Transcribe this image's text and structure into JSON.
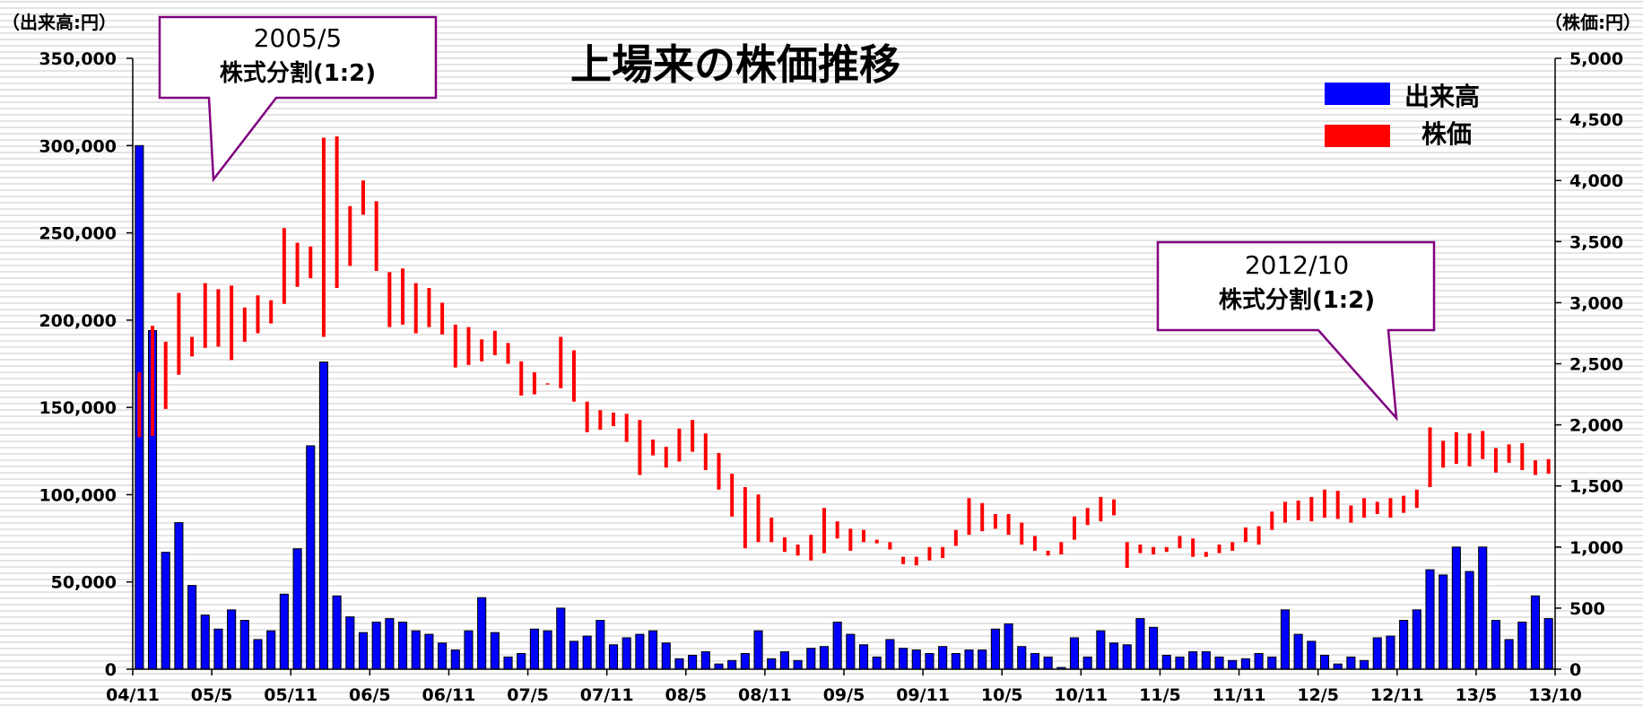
{
  "chart_data": {
    "type": "bar+range",
    "title": "上場来の株価推移",
    "y_left_unit": "（出来高:円）",
    "y_right_unit": "（株価:円）",
    "y_left_lim": [
      0,
      350000
    ],
    "y_right_lim": [
      0,
      5000
    ],
    "y_left_ticks": [
      "0",
      "50,000",
      "100,000",
      "150,000",
      "200,000",
      "250,000",
      "300,000",
      "350,000"
    ],
    "y_right_ticks": [
      "0",
      "500",
      "1,000",
      "1,500",
      "2,000",
      "2,500",
      "3,000",
      "3,500",
      "4,000",
      "4,500",
      "5,000"
    ],
    "x_ticks": [
      "04/11",
      "05/5",
      "05/11",
      "06/5",
      "06/11",
      "07/5",
      "07/11",
      "08/5",
      "08/11",
      "09/5",
      "09/11",
      "10/5",
      "10/11",
      "11/5",
      "11/11",
      "12/5",
      "12/11",
      "13/5",
      "13/10"
    ],
    "grid": true,
    "legend": [
      {
        "name": "出来高",
        "color": "#0000ff"
      },
      {
        "name": "株価",
        "color": "#ff0000"
      }
    ],
    "volume_color": "#0000ff",
    "price_color": "#ff0000",
    "volume": [
      300000,
      194000,
      67000,
      84000,
      48000,
      31000,
      23000,
      34000,
      28000,
      17000,
      22000,
      43000,
      69000,
      128000,
      176000,
      42000,
      30000,
      21000,
      27000,
      29000,
      27000,
      22000,
      20000,
      15000,
      11000,
      22000,
      41000,
      21000,
      7000,
      9000,
      23000,
      22000,
      35000,
      16000,
      19000,
      28000,
      14000,
      18000,
      20000,
      22000,
      15000,
      6000,
      8000,
      10000,
      3000,
      5000,
      9000,
      22000,
      6000,
      10000,
      5000,
      12000,
      13000,
      27000,
      20000,
      14000,
      7000,
      17000,
      12000,
      11000,
      9000,
      13000,
      9000,
      11000,
      11000,
      23000,
      26000,
      13000,
      9000,
      7000,
      1000,
      18000,
      7000,
      22000,
      15000,
      14000,
      29000,
      24000,
      8000,
      7000,
      10000,
      10000,
      7000,
      5000,
      6000,
      9000,
      7000,
      34000,
      20000,
      16000,
      8000,
      3000,
      7000,
      5000,
      18000,
      19000,
      28000,
      34000,
      57000,
      54000,
      70000,
      56000,
      70000,
      28000,
      17000,
      27000,
      42000,
      29000
    ],
    "price_high": [
      2430,
      2810,
      2680,
      3080,
      2720,
      3160,
      3110,
      3140,
      2960,
      3060,
      3020,
      3610,
      3490,
      3460,
      4350,
      4360,
      3790,
      4000,
      3830,
      3250,
      3280,
      3160,
      3120,
      3000,
      2820,
      2800,
      2700,
      2770,
      2670,
      2520,
      2430,
      2330,
      2720,
      2610,
      2190,
      2120,
      2100,
      2090,
      2040,
      1880,
      1820,
      1970,
      2040,
      1930,
      1770,
      1600,
      1490,
      1430,
      1240,
      1080,
      1020,
      1100,
      1320,
      1210,
      1150,
      1140,
      1060,
      1040,
      920,
      920,
      1000,
      1000,
      1140,
      1400,
      1360,
      1270,
      1270,
      1200,
      1090,
      970,
      1040,
      1250,
      1320,
      1410,
      1390,
      1040,
      1020,
      1000,
      1000,
      1090,
      1070,
      960,
      1020,
      1040,
      1160,
      1170,
      1290,
      1370,
      1380,
      1410,
      1470,
      1460,
      1340,
      1400,
      1370,
      1400,
      1420,
      1470,
      1980,
      1870,
      1940,
      1930,
      1950,
      1810,
      1840,
      1850,
      1710,
      1720
    ],
    "price_low": [
      1900,
      1910,
      2130,
      2410,
      2560,
      2630,
      2640,
      2530,
      2680,
      2750,
      2830,
      2990,
      3130,
      3200,
      2720,
      3120,
      3300,
      3720,
      3260,
      2800,
      2820,
      2750,
      2800,
      2740,
      2470,
      2490,
      2520,
      2570,
      2500,
      2240,
      2250,
      2340,
      2300,
      2190,
      1940,
      1960,
      1990,
      1860,
      1590,
      1750,
      1650,
      1700,
      1780,
      1630,
      1470,
      1250,
      990,
      1040,
      1040,
      960,
      930,
      890,
      950,
      1070,
      970,
      1040,
      1030,
      980,
      860,
      850,
      890,
      910,
      1010,
      1100,
      1130,
      1150,
      1100,
      1020,
      970,
      930,
      940,
      1060,
      1180,
      1210,
      1260,
      830,
      950,
      940,
      960,
      990,
      920,
      920,
      950,
      970,
      1040,
      1020,
      1140,
      1200,
      1220,
      1210,
      1240,
      1230,
      1200,
      1240,
      1270,
      1240,
      1280,
      1320,
      1490,
      1650,
      1680,
      1660,
      1720,
      1610,
      1690,
      1630,
      1590,
      1600
    ],
    "annotations": [
      {
        "date": "2005/5",
        "text": "株式分割(1:2)"
      },
      {
        "date": "2012/10",
        "text": "株式分割(1:2)"
      }
    ]
  }
}
